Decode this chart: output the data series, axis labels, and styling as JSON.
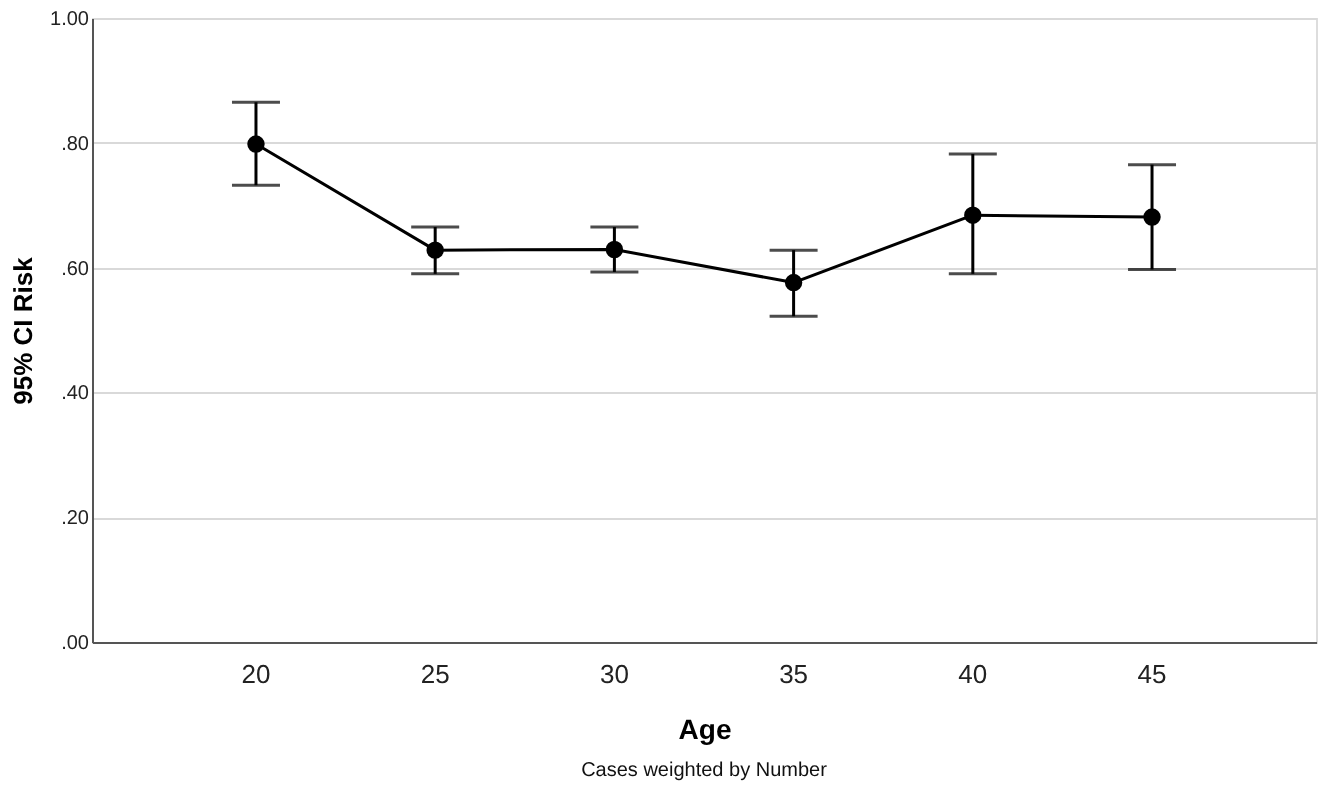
{
  "chart_data": {
    "type": "line",
    "xlabel": "Age",
    "ylabel": "95% CI Risk",
    "categories": [
      "20",
      "25",
      "30",
      "35",
      "40",
      "45"
    ],
    "series": [
      {
        "color": "#000000",
        "values": [
          0.798,
          0.628,
          0.629,
          0.576,
          0.684,
          0.681
        ],
        "errors": [
          [
            0.732,
            0.865
          ],
          [
            0.59,
            0.665
          ],
          [
            0.593,
            0.665
          ],
          [
            0.522,
            0.628
          ],
          [
            0.59,
            0.782
          ],
          [
            0.597,
            0.765
          ]
        ]
      }
    ],
    "ylim": [
      0,
      1
    ],
    "yticks": [
      {
        "value": 0,
        "label": ".00"
      },
      {
        "value": 0.2,
        "label": ".20"
      },
      {
        "value": 0.4,
        "label": ".40"
      },
      {
        "value": 0.6,
        "label": ".60"
      },
      {
        "value": 0.8,
        "label": ".80"
      },
      {
        "value": 1,
        "label": "1.00"
      }
    ],
    "grid": "y",
    "marker": "circle",
    "line_style": "solid",
    "annotations": [
      "Cases weighted by Number"
    ]
  }
}
